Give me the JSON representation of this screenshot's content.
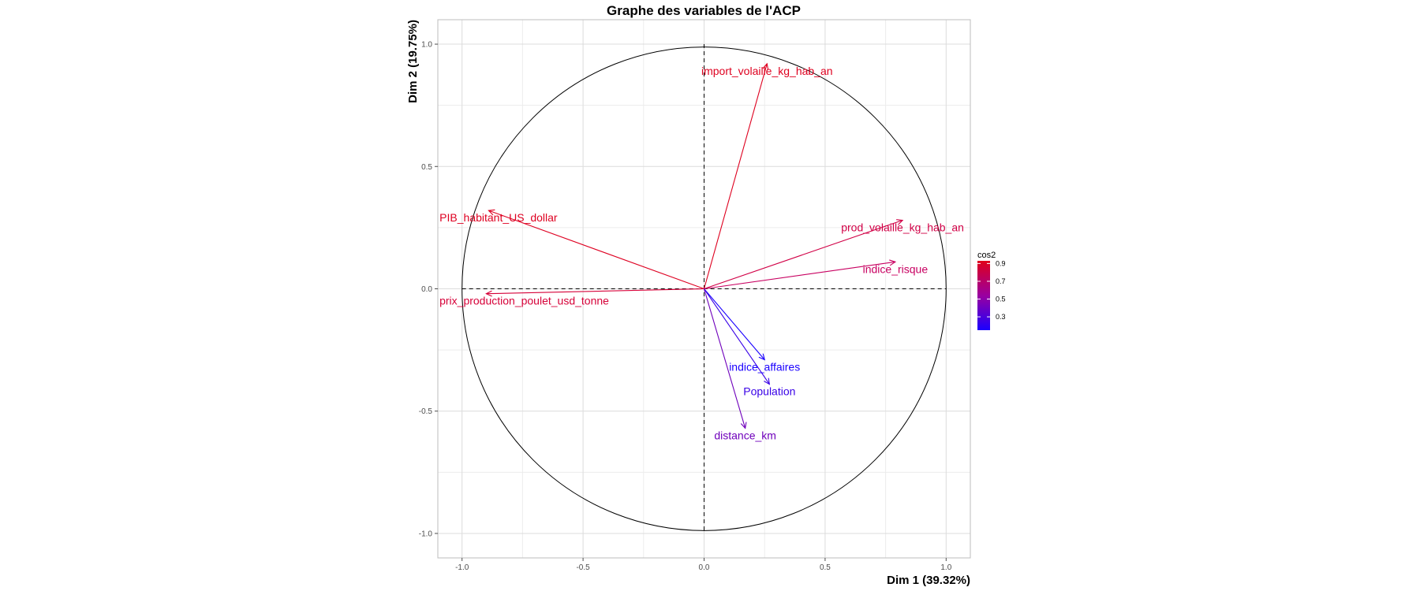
{
  "chart_data": {
    "type": "scatter",
    "title": "Graphe des variables de l'ACP",
    "xlabel": "Dim 1 (39.32%)",
    "ylabel": "Dim 2 (19.75%)",
    "xlim": [
      -1.1,
      1.1
    ],
    "ylim": [
      -1.1,
      1.1
    ],
    "x_ticks": [
      -1.0,
      -0.5,
      0.0,
      0.5,
      1.0
    ],
    "y_ticks": [
      -1.0,
      -0.5,
      0.0,
      0.5,
      1.0
    ],
    "x_tick_labels": [
      "-1.0",
      "-0.5",
      "0.0",
      "0.5",
      "1.0"
    ],
    "y_tick_labels": [
      "-1.0",
      "-0.5",
      "0.0",
      "0.5",
      "1.0"
    ],
    "grid": true,
    "unit_circle": true,
    "variables": [
      {
        "name": "import_volaille_kg_hab_an",
        "x": 0.26,
        "y": 0.92,
        "cos2": 0.91
      },
      {
        "name": "PIB_habitant_US_dollar",
        "x": -0.89,
        "y": 0.32,
        "cos2": 0.9
      },
      {
        "name": "prod_volaille_kg_hab_an",
        "x": 0.82,
        "y": 0.28,
        "cos2": 0.75
      },
      {
        "name": "indice_risque",
        "x": 0.79,
        "y": 0.11,
        "cos2": 0.64
      },
      {
        "name": "prix_production_poulet_usd_tonne",
        "x": -0.9,
        "y": -0.02,
        "cos2": 0.81
      },
      {
        "name": "indice_affaires",
        "x": 0.25,
        "y": -0.29,
        "cos2": 0.15
      },
      {
        "name": "Population",
        "x": 0.27,
        "y": -0.39,
        "cos2": 0.22
      },
      {
        "name": "distance_km",
        "x": 0.17,
        "y": -0.57,
        "cos2": 0.35
      }
    ],
    "legend": {
      "title": "cos2",
      "position": "right",
      "ticks": [
        0.9,
        0.7,
        0.5,
        0.3
      ],
      "tick_labels": [
        "0.9",
        "0.7",
        "0.5",
        "0.3"
      ],
      "range": [
        0.15,
        0.93
      ],
      "gradient_low": "#1a00ff",
      "gradient_mid": "#c0007a",
      "gradient_high": "#e0001a"
    }
  }
}
